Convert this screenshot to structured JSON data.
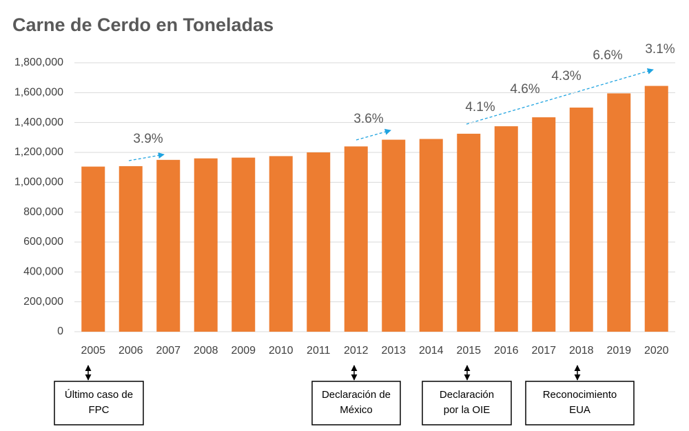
{
  "chart_data": {
    "type": "bar",
    "title": "Carne de Cerdo en Toneladas",
    "categories": [
      "2005",
      "2006",
      "2007",
      "2008",
      "2009",
      "2010",
      "2011",
      "2012",
      "2013",
      "2014",
      "2015",
      "2016",
      "2017",
      "2018",
      "2019",
      "2020"
    ],
    "values": [
      1105000,
      1108000,
      1150000,
      1160000,
      1165000,
      1175000,
      1200000,
      1240000,
      1285000,
      1290000,
      1325000,
      1375000,
      1435000,
      1500000,
      1595000,
      1645000
    ],
    "color": "#ed7d31",
    "ylim": [
      0,
      1800000
    ],
    "yticks": [
      0,
      {
        "value": 200000,
        "label": "200,000"
      },
      {
        "value": 400000,
        "label": "400,000"
      },
      {
        "value": 600000,
        "label": "600,000"
      },
      {
        "value": 800000,
        "label": "800,000"
      },
      {
        "value": 1000000,
        "label": "1,000,000"
      },
      {
        "value": 1200000,
        "label": "1,200,000"
      },
      {
        "value": 1400000,
        "label": "1,400,000"
      },
      {
        "value": 1600000,
        "label": "1,600,000"
      },
      {
        "value": 1800000,
        "label": "1,800,000"
      }
    ],
    "grid": true,
    "annotations": [
      "3.9%",
      "3.6%",
      "4.1%",
      "4.6%",
      "4.3%",
      "6.6%",
      "3.1%"
    ],
    "events": [
      {
        "lines": [
          "Último caso de",
          "FPC"
        ]
      },
      {
        "lines": [
          "Declaración de",
          "México"
        ]
      },
      {
        "lines": [
          "Declaración",
          "por la OIE"
        ]
      },
      {
        "lines": [
          "Reconocimiento",
          "EUA"
        ]
      }
    ]
  }
}
